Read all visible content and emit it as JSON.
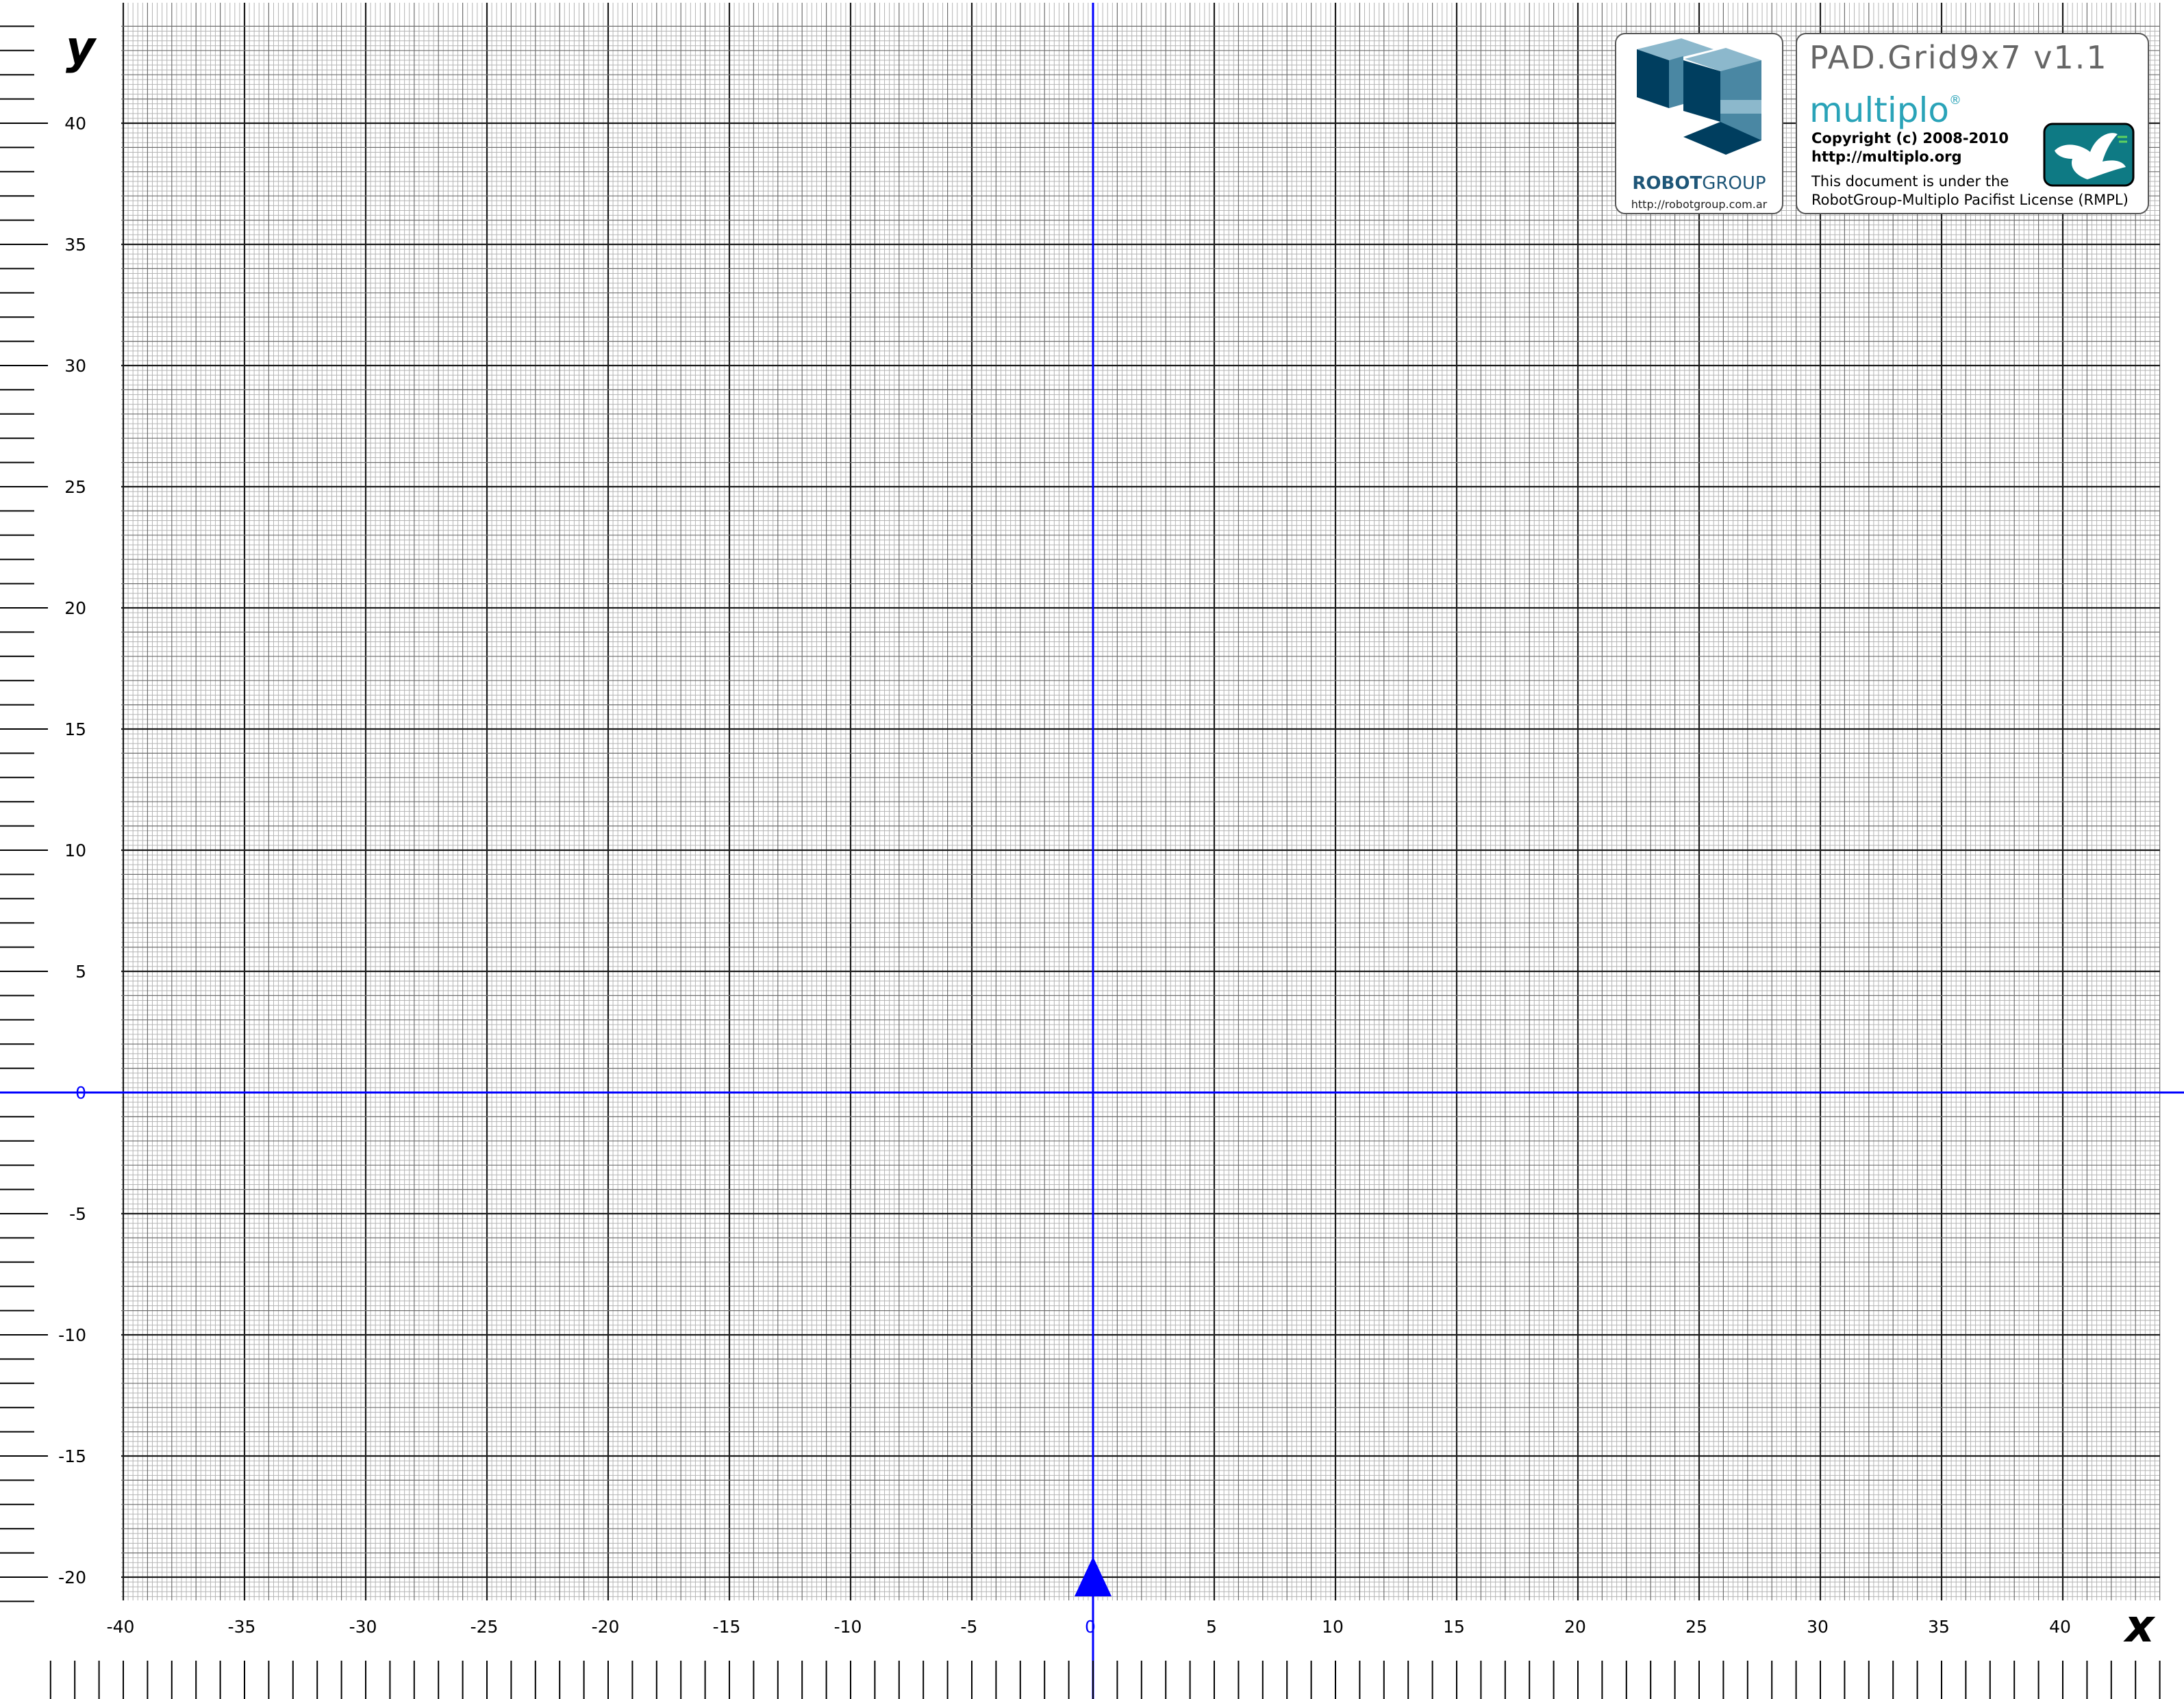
{
  "axes": {
    "x_name": "x",
    "y_name": "y",
    "x_range": [
      -40,
      44
    ],
    "y_range": [
      -21,
      44
    ],
    "x_tick_step": 5,
    "y_tick_step": 5,
    "x_ticks": [
      "-40",
      "-35",
      "-30",
      "-25",
      "-20",
      "-15",
      "-10",
      "-5",
      "0",
      "5",
      "10",
      "15",
      "20",
      "25",
      "30",
      "35",
      "40"
    ],
    "y_ticks": [
      "40",
      "35",
      "30",
      "25",
      "20",
      "15",
      "10",
      "5",
      "0",
      "-5",
      "-10",
      "-15",
      "-20"
    ],
    "grid": true,
    "minor_divisions": 5,
    "axis_color": "#0000ff"
  },
  "robotgroup": {
    "name_bold": "ROBOT",
    "name_light": "GROUP",
    "url": "http://robotgroup.com.ar"
  },
  "pad": {
    "title": "PAD.Grid9x7 v1.1",
    "brand": "multiplo",
    "brand_mark": "®",
    "copyright": "Copyright (c) 2008-2010",
    "site": "http://multiplo.org",
    "license_line1": "This document is under the",
    "license_line2": "RobotGroup-Multiplo Pacifist License (RMPL)"
  },
  "colors": {
    "logo_dark": "#003e5f",
    "logo_mid": "#4a87a3",
    "logo_light": "#8cb8cc",
    "dove_bg": "#0e7a84",
    "brand": "#2aa3b8"
  }
}
